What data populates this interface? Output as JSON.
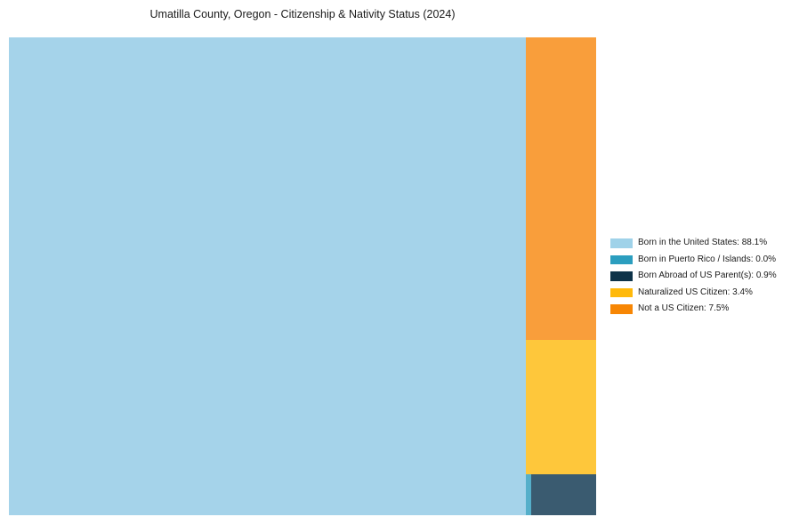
{
  "title": "Umatilla County, Oregon - Citizenship & Nativity Status (2024)",
  "chart_data": {
    "type": "treemap",
    "title": "Umatilla County, Oregon - Citizenship & Nativity Status (2024)",
    "unit": "percent",
    "legend_position": "right",
    "categories": [
      "Born in the United States",
      "Born in Puerto Rico / Islands",
      "Born Abroad of US Parent(s)",
      "Naturalized US Citizen",
      "Not a US Citizen"
    ],
    "values": [
      88.1,
      0.0,
      0.9,
      3.4,
      7.5
    ],
    "colors": [
      "#9fd2e9",
      "#2b9ebf",
      "#0e3349",
      "#ffb90a",
      "#f78604"
    ]
  },
  "segments": [
    {
      "label": "Born in the United States",
      "pct": "88.1%",
      "fill": "#a5d3ea"
    },
    {
      "label": "Not a US Citizen",
      "pct": "7.5%",
      "fill": "#f99e3b"
    },
    {
      "label": "Naturalized US Citizen",
      "pct": "3.4%",
      "fill": "#fec73b"
    },
    {
      "label": "Born in Puerto Rico / Islands",
      "pct": "0.0%",
      "fill": "#55afca"
    },
    {
      "label": "Born Abroad of US Parent(s)",
      "pct": "0.9%",
      "fill": "#3a5b70"
    }
  ],
  "legend": {
    "items": [
      {
        "label": "Born in the United States: 88.1%",
        "swatch": "#9fd2e9"
      },
      {
        "label": "Born in Puerto Rico / Islands: 0.0%",
        "swatch": "#2b9ebf"
      },
      {
        "label": "Born Abroad of US Parent(s): 0.9%",
        "swatch": "#0e3349"
      },
      {
        "label": "Naturalized US Citizen: 3.4%",
        "swatch": "#ffb90a"
      },
      {
        "label": "Not a US Citizen: 7.5%",
        "swatch": "#f78604"
      }
    ]
  }
}
